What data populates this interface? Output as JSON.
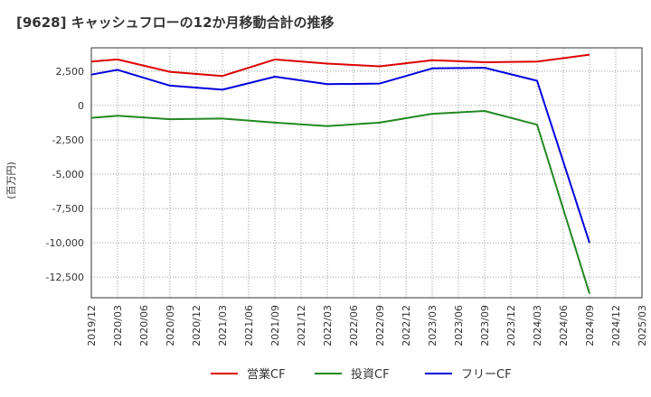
{
  "chart_data": {
    "type": "line",
    "title": "[9628]  キャッシュフローの12か月移動合計の推移",
    "ylabel": "(百万円)",
    "xlabel": "",
    "ylim": [
      -14000,
      4200
    ],
    "yticks": [
      2500,
      0,
      -2500,
      -5000,
      -7500,
      -10000,
      -12500
    ],
    "ytick_labels": [
      "2,500",
      "0",
      "-2,500",
      "-5,000",
      "-7,500",
      "-10,000",
      "-12,500"
    ],
    "categories": [
      "2019/12",
      "2020/03",
      "2020/06",
      "2020/09",
      "2020/12",
      "2021/03",
      "2021/06",
      "2021/09",
      "2021/12",
      "2022/03",
      "2022/06",
      "2022/09",
      "2022/12",
      "2023/03",
      "2023/06",
      "2023/09",
      "2023/12",
      "2024/03",
      "2024/06",
      "2024/09",
      "2024/12",
      "2025/03"
    ],
    "series": [
      {
        "name": "営業CF",
        "color": "#dd0000",
        "values": [
          3200,
          3350,
          null,
          2450,
          null,
          2150,
          null,
          3350,
          null,
          3050,
          null,
          2850,
          null,
          3300,
          null,
          3150,
          null,
          3200,
          null,
          3700,
          null,
          null
        ]
      },
      {
        "name": "投資CF",
        "color": "#228822",
        "values": [
          -900,
          -750,
          null,
          -1000,
          null,
          -950,
          null,
          -1250,
          null,
          -1500,
          null,
          -1250,
          null,
          -600,
          null,
          -400,
          null,
          -1400,
          null,
          -13700,
          null,
          null
        ]
      },
      {
        "name": "フリーCF",
        "color": "#0000dd",
        "values": [
          2250,
          2600,
          null,
          1450,
          null,
          1150,
          null,
          2100,
          null,
          1550,
          null,
          1600,
          null,
          2700,
          null,
          2750,
          null,
          1800,
          null,
          -10000,
          null,
          null
        ]
      }
    ],
    "grid": true,
    "legend": "bottom"
  }
}
